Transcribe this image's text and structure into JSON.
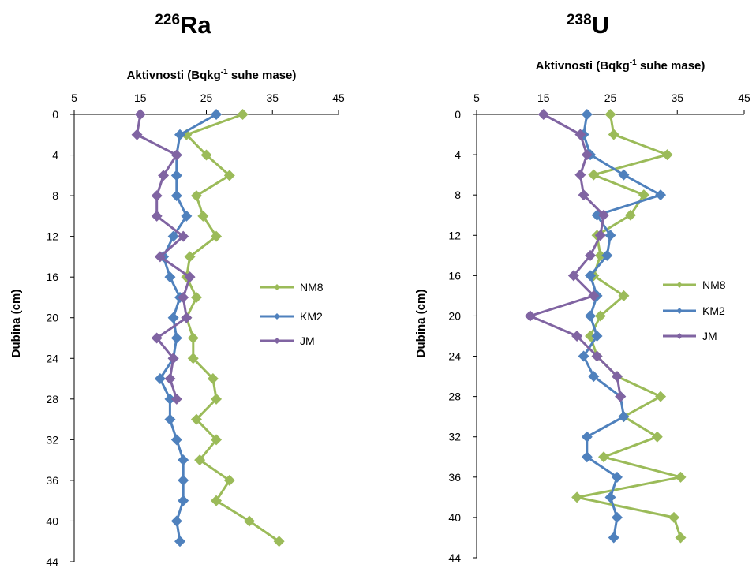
{
  "chart_data": [
    {
      "type": "line",
      "title": {
        "sup": "226",
        "main": "Ra"
      },
      "xlabel": {
        "before": "Aktivnosti (Bqkg",
        "sup": "-1",
        "after": " suhe mase)"
      },
      "ylabel": "Dubina (cm)",
      "xlim": [
        5,
        45
      ],
      "xticks": [
        5,
        15,
        25,
        35,
        45
      ],
      "ylim": [
        0,
        44
      ],
      "yticks": [
        0,
        4,
        8,
        12,
        16,
        20,
        24,
        28,
        32,
        36,
        40,
        44
      ],
      "y_inverted": true,
      "x_axis_position": "top",
      "grid": false,
      "legend_placement": "right",
      "series": [
        {
          "name": "NM8",
          "color": "#9bbb59",
          "points": [
            [
              30.5,
              0
            ],
            [
              22,
              2
            ],
            [
              25,
              4
            ],
            [
              28.5,
              6
            ],
            [
              23.5,
              8
            ],
            [
              24.5,
              10
            ],
            [
              26.5,
              12
            ],
            [
              22.5,
              14
            ],
            [
              22,
              16
            ],
            [
              23.5,
              18
            ],
            [
              22,
              20
            ],
            [
              23,
              22
            ],
            [
              23,
              24
            ],
            [
              26,
              26
            ],
            [
              26.5,
              28
            ],
            [
              23.5,
              30
            ],
            [
              26.5,
              32
            ],
            [
              24,
              34
            ],
            [
              28.5,
              36
            ],
            [
              26.5,
              38
            ],
            [
              31.5,
              40
            ],
            [
              36,
              42
            ]
          ]
        },
        {
          "name": "KM2",
          "color": "#4f81bd",
          "points": [
            [
              26.5,
              0
            ],
            [
              21,
              2
            ],
            [
              20.5,
              4
            ],
            [
              20.5,
              6
            ],
            [
              20.5,
              8
            ],
            [
              22,
              10
            ],
            [
              20,
              12
            ],
            [
              18.5,
              14
            ],
            [
              19.5,
              16
            ],
            [
              21,
              18
            ],
            [
              20,
              20
            ],
            [
              20.5,
              22
            ],
            [
              20,
              24
            ],
            [
              18,
              26
            ],
            [
              19.5,
              28
            ],
            [
              19.5,
              30
            ],
            [
              20.5,
              32
            ],
            [
              21.5,
              34
            ],
            [
              21.5,
              36
            ],
            [
              21.5,
              38
            ],
            [
              20.5,
              40
            ],
            [
              21,
              42
            ]
          ]
        },
        {
          "name": "JM",
          "color": "#8064a2",
          "points": [
            [
              15,
              0
            ],
            [
              14.5,
              2
            ],
            [
              20.5,
              4
            ],
            [
              18.5,
              6
            ],
            [
              17.5,
              8
            ],
            [
              17.5,
              10
            ],
            [
              21.5,
              12
            ],
            [
              18,
              14
            ],
            [
              22.5,
              16
            ],
            [
              21.5,
              18
            ],
            [
              22,
              20
            ],
            [
              17.5,
              22
            ],
            [
              20,
              24
            ],
            [
              19.5,
              26
            ],
            [
              20.5,
              28
            ]
          ]
        }
      ]
    },
    {
      "type": "line",
      "title": {
        "sup": "238",
        "main": "U"
      },
      "xlabel": {
        "before": "Aktivnosti (Bqkg",
        "sup": "-1",
        "after": " suhe mase)"
      },
      "ylabel": "Dubina (cm)",
      "xlim": [
        5,
        45
      ],
      "xticks": [
        5,
        15,
        25,
        35,
        45
      ],
      "ylim": [
        0,
        44
      ],
      "yticks": [
        0,
        4,
        8,
        12,
        16,
        20,
        24,
        28,
        32,
        36,
        40,
        44
      ],
      "y_inverted": true,
      "x_axis_position": "top",
      "grid": false,
      "legend_placement": "right",
      "series": [
        {
          "name": "NM8",
          "color": "#9bbb59",
          "points": [
            [
              25,
              0
            ],
            [
              25.5,
              2
            ],
            [
              33.5,
              4
            ],
            [
              22.5,
              6
            ],
            [
              30,
              8
            ],
            [
              28,
              10
            ],
            [
              23,
              12
            ],
            [
              23.5,
              14
            ],
            [
              22.5,
              16
            ],
            [
              27,
              18
            ],
            [
              23.5,
              20
            ],
            [
              22,
              22
            ],
            [
              23,
              24
            ],
            [
              26,
              26
            ],
            [
              32.5,
              28
            ],
            [
              27,
              30
            ],
            [
              32,
              32
            ],
            [
              24,
              34
            ],
            [
              35.5,
              36
            ],
            [
              20,
              38
            ],
            [
              34.5,
              40
            ],
            [
              35.5,
              42
            ]
          ]
        },
        {
          "name": "KM2",
          "color": "#4f81bd",
          "points": [
            [
              21.5,
              0
            ],
            [
              21,
              2
            ],
            [
              22,
              4
            ],
            [
              27,
              6
            ],
            [
              32.5,
              8
            ],
            [
              23,
              10
            ],
            [
              25,
              12
            ],
            [
              24.5,
              14
            ],
            [
              22,
              16
            ],
            [
              23,
              18
            ],
            [
              22,
              20
            ],
            [
              23,
              22
            ],
            [
              21,
              24
            ],
            [
              22.5,
              26
            ],
            [
              26.5,
              28
            ],
            [
              27,
              30
            ],
            [
              21.5,
              32
            ],
            [
              21.5,
              34
            ],
            [
              26,
              36
            ],
            [
              25,
              38
            ],
            [
              26,
              40
            ],
            [
              25.5,
              42
            ]
          ]
        },
        {
          "name": "JM",
          "color": "#8064a2",
          "points": [
            [
              15,
              0
            ],
            [
              20.5,
              2
            ],
            [
              21.5,
              4
            ],
            [
              20.5,
              6
            ],
            [
              21,
              8
            ],
            [
              24,
              10
            ],
            [
              23.5,
              12
            ],
            [
              22,
              14
            ],
            [
              19.5,
              16
            ],
            [
              22.5,
              18
            ],
            [
              13,
              20
            ],
            [
              20,
              22
            ],
            [
              23,
              24
            ],
            [
              26,
              26
            ],
            [
              26.5,
              28
            ]
          ]
        }
      ]
    }
  ]
}
